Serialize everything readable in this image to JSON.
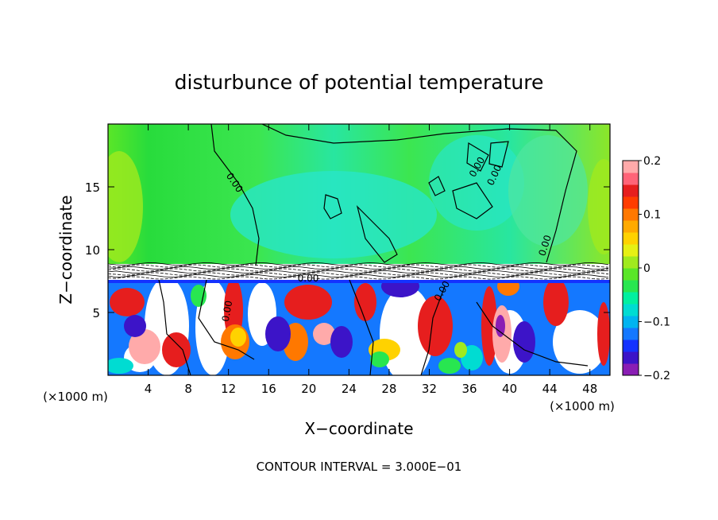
{
  "chart_data": {
    "type": "heatmap",
    "title": "disturbunce of potential temperature",
    "xlabel": "X−coordinate",
    "ylabel": "Z−coordinate",
    "x_unit": "(×1000 m)",
    "z_unit": "(×1000 m)",
    "xlim": [
      0,
      50
    ],
    "ylim": [
      0,
      20
    ],
    "x_ticks": [
      4,
      8,
      12,
      16,
      20,
      24,
      28,
      32,
      36,
      40,
      44,
      48
    ],
    "x_tick_labels": [
      "4",
      "8",
      "12",
      "16",
      "20",
      "24",
      "28",
      "32",
      "36",
      "40",
      "44",
      "48"
    ],
    "y_ticks": [
      5,
      10,
      15
    ],
    "y_tick_labels": [
      "5",
      "10",
      "15"
    ],
    "colorbar": {
      "range": [
        -0.2,
        0.2
      ],
      "tick_values": [
        0.2,
        0.1,
        0,
        -0.1,
        -0.2
      ],
      "tick_labels": [
        "0.2",
        "0.1",
        "0",
        "−0.1",
        "−0.2"
      ],
      "colors": [
        "#8a1eb4",
        "#3c14c8",
        "#1432ff",
        "#1478ff",
        "#00b4f0",
        "#00dcd2",
        "#00f0a0",
        "#28e650",
        "#5ae628",
        "#a0ea1e",
        "#e6f014",
        "#ffd200",
        "#ffaa00",
        "#ff7800",
        "#ff3c00",
        "#e61e1e",
        "#ff6478",
        "#ffaaaa"
      ]
    },
    "contour_labels": [
      "0.00",
      "0.00",
      "0.00",
      "0.00",
      "0.00",
      "0.00",
      "0.00"
    ],
    "contour_interval_text": "CONTOUR INTERVAL = 3.000E−01",
    "grid": false
  }
}
